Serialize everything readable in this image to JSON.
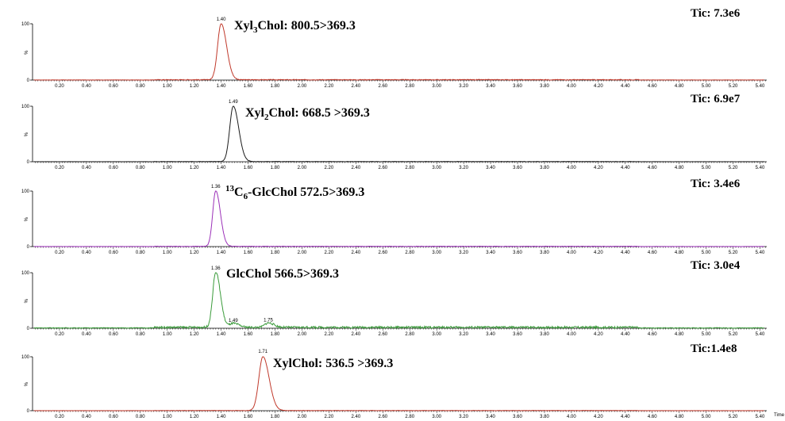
{
  "chart_data": [
    {
      "type": "line",
      "title_main": "Xyl",
      "title_sub": "3",
      "title_rest": "Chol: 800.5>369.3",
      "tic": "Tic: 7.3e6",
      "color": "#c0392b",
      "ymax_label": "100",
      "ymid_label": "%",
      "ymin_label": "0",
      "ylim": [
        0,
        100
      ],
      "xlim": [
        0,
        5.45
      ],
      "xticks": [
        "0.20",
        "0.40",
        "0.60",
        "0.80",
        "1.00",
        "1.20",
        "1.40",
        "1.60",
        "1.80",
        "2.00",
        "2.20",
        "2.40",
        "2.60",
        "2.80",
        "3.00",
        "3.20",
        "3.40",
        "3.60",
        "3.80",
        "4.00",
        "4.20",
        "4.40",
        "4.60",
        "4.80",
        "5.00",
        "5.20",
        "5.40"
      ],
      "peaks": [
        {
          "x": 1.4,
          "y": 100,
          "width": 0.035,
          "label": "1.40"
        }
      ],
      "noise": 1.2
    },
    {
      "type": "line",
      "title_main": "Xyl",
      "title_sub": "2",
      "title_rest": "Chol: 668.5 >369.3",
      "tic": "Tic: 6.9e7",
      "color": "#1a1a1a",
      "ymax_label": "100",
      "ymid_label": "%",
      "ymin_label": "0",
      "ylim": [
        0,
        100
      ],
      "xlim": [
        0,
        5.45
      ],
      "xticks": [
        "0.20",
        "0.40",
        "0.60",
        "0.80",
        "1.00",
        "1.20",
        "1.40",
        "1.60",
        "1.80",
        "2.00",
        "2.20",
        "2.40",
        "2.60",
        "2.80",
        "3.00",
        "3.20",
        "3.40",
        "3.60",
        "3.80",
        "4.00",
        "4.20",
        "4.40",
        "4.60",
        "4.80",
        "5.00",
        "5.20",
        "5.40"
      ],
      "peaks": [
        {
          "x": 1.49,
          "y": 100,
          "width": 0.035,
          "label": "1.49"
        }
      ],
      "noise": 0.6
    },
    {
      "type": "line",
      "title_pre_sup": "13",
      "title_main": "C",
      "title_sub": "6",
      "title_rest": "-GlcChol 572.5>369.3",
      "tic": "Tic: 3.4e6",
      "color": "#9b30b8",
      "ymax_label": "100",
      "ymid_label": "%",
      "ymin_label": "0",
      "ylim": [
        0,
        100
      ],
      "xlim": [
        0,
        5.45
      ],
      "xticks": [
        "0.20",
        "0.40",
        "0.60",
        "0.80",
        "1.00",
        "1.20",
        "1.40",
        "1.60",
        "1.80",
        "2.00",
        "2.20",
        "2.40",
        "2.60",
        "2.80",
        "3.00",
        "3.20",
        "3.40",
        "3.60",
        "3.80",
        "4.00",
        "4.20",
        "4.40",
        "4.60",
        "4.80",
        "5.00",
        "5.20",
        "5.40"
      ],
      "peaks": [
        {
          "x": 1.36,
          "y": 100,
          "width": 0.03,
          "label": "1.36"
        }
      ],
      "noise": 0.8
    },
    {
      "type": "line",
      "title_main": "GlcChol 566.5>369.3",
      "title_sub": "",
      "title_rest": "",
      "tic": "Tic: 3.0e4",
      "color": "#3a9b3a",
      "ymax_label": "100",
      "ymid_label": "%",
      "ymin_label": "0",
      "ylim": [
        0,
        100
      ],
      "xlim": [
        0,
        5.45
      ],
      "xticks": [
        "0.20",
        "0.40",
        "0.60",
        "0.80",
        "1.00",
        "1.20",
        "1.40",
        "1.60",
        "1.80",
        "2.00",
        "2.20",
        "2.40",
        "2.60",
        "2.80",
        "3.00",
        "3.20",
        "3.40",
        "3.60",
        "3.80",
        "4.00",
        "4.20",
        "4.40",
        "4.60",
        "4.80",
        "5.00",
        "5.20",
        "5.40"
      ],
      "peaks": [
        {
          "x": 1.36,
          "y": 100,
          "width": 0.03,
          "label": "1.36"
        },
        {
          "x": 1.49,
          "y": 7,
          "width": 0.035,
          "label": "1.49"
        },
        {
          "x": 1.75,
          "y": 8,
          "width": 0.035,
          "label": "1.75"
        }
      ],
      "noise": 3.5
    },
    {
      "type": "line",
      "title_main": "XylChol: 536.5 >369.3",
      "title_sub": "",
      "title_rest": "",
      "tic": "Tic:1.4e8",
      "color": "#c0392b",
      "ymax_label": "100",
      "ymid_label": "%",
      "ymin_label": "0",
      "ylim": [
        0,
        100
      ],
      "xlim": [
        0,
        5.45
      ],
      "xticks": [
        "0.20",
        "0.40",
        "0.60",
        "0.80",
        "1.00",
        "1.20",
        "1.40",
        "1.60",
        "1.80",
        "2.00",
        "2.20",
        "2.40",
        "2.60",
        "2.80",
        "3.00",
        "3.20",
        "3.40",
        "3.60",
        "3.80",
        "4.00",
        "4.20",
        "4.40",
        "4.60",
        "4.80",
        "5.00",
        "5.20",
        "5.40"
      ],
      "peaks": [
        {
          "x": 1.71,
          "y": 100,
          "width": 0.04,
          "label": "1.71"
        }
      ],
      "noise": 0.6,
      "xlabel": "Time"
    }
  ]
}
